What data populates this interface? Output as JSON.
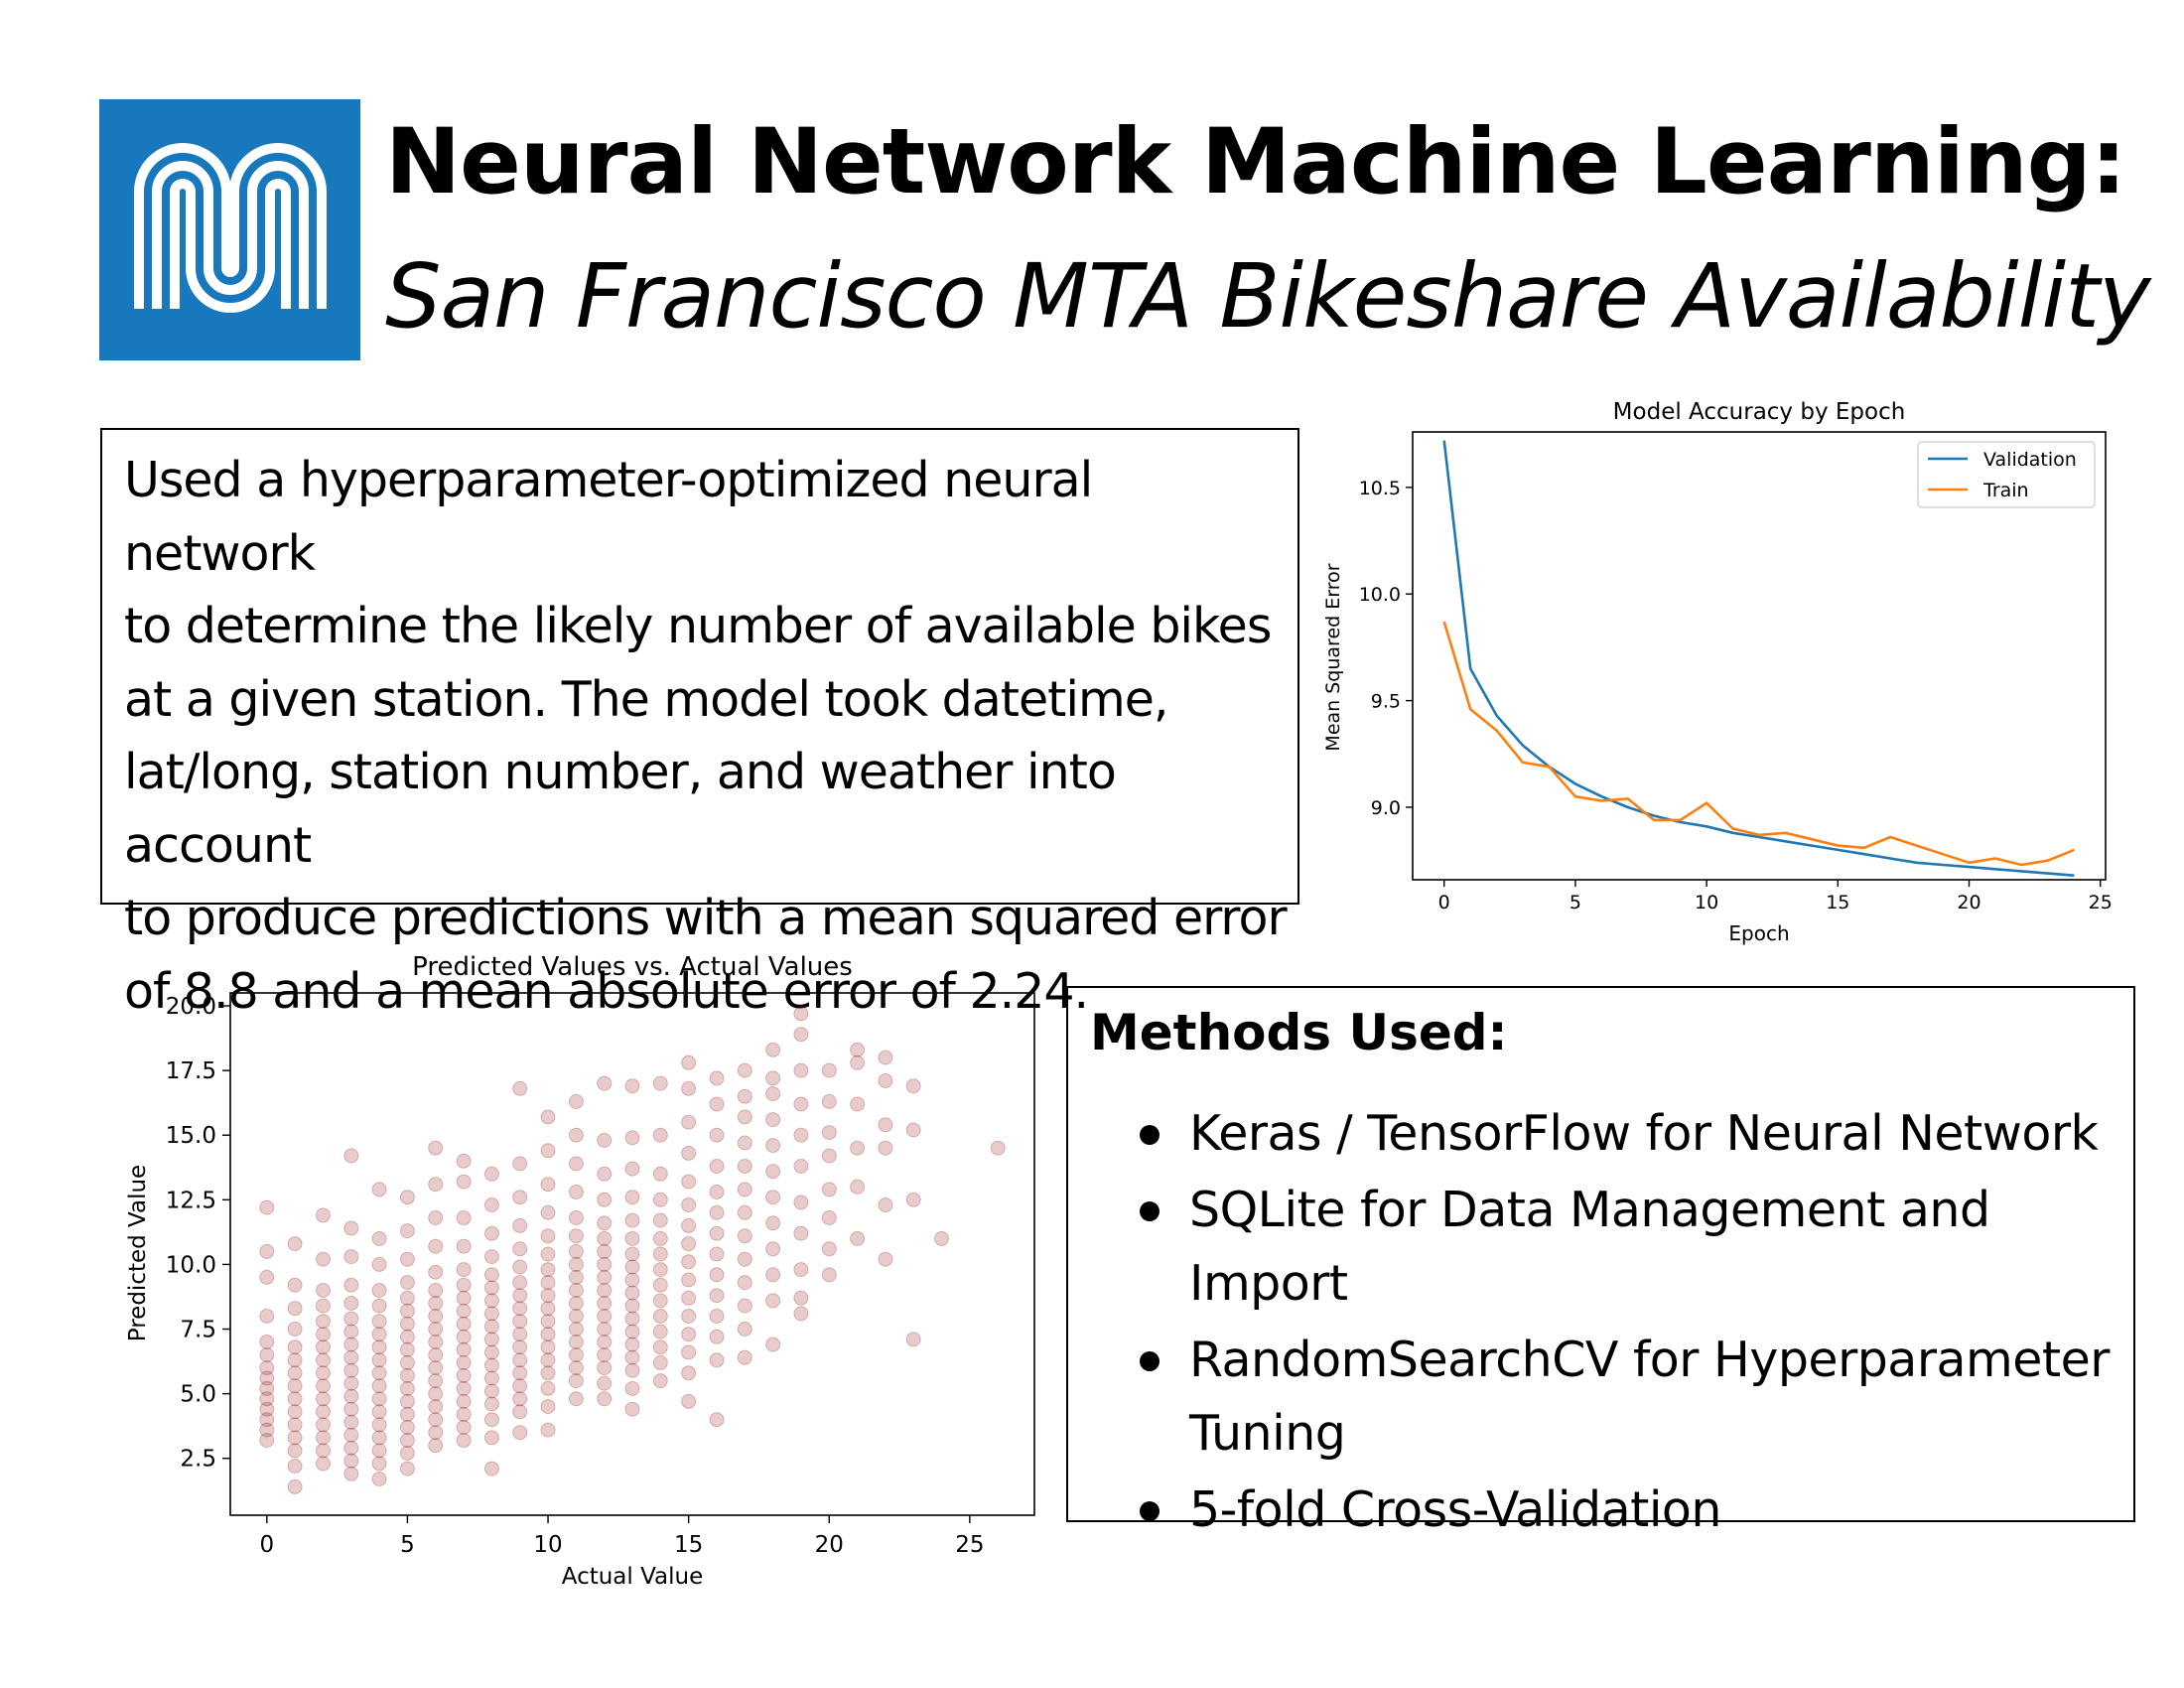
{
  "header": {
    "title": "Neural Network Machine Learning:",
    "subtitle": "San Francisco MTA Bikeshare Availability",
    "logo_color": "#1878be"
  },
  "summary": {
    "text": "Used a hyperparameter-optimized neural network\nto determine the likely number of available bikes\nat a given station. The model took datetime,\nlat/long, station number, and weather into account\nto produce predictions with a mean squared error\nof 8.8 and a mean absolute error of 2.24."
  },
  "methods": {
    "title": "Methods Used:",
    "items": [
      "Keras / TensorFlow for Neural Network",
      "SQLite for Data Management and Import",
      "RandomSearchCV for Hyperparameter\nTuning",
      "5-fold Cross-Validation"
    ]
  },
  "chart_data": [
    {
      "type": "line",
      "title": "Model Accuracy by Epoch",
      "xlabel": "Epoch",
      "ylabel": "Mean Squared Error",
      "xlim": [
        -1.2,
        25.2
      ],
      "ylim": [
        8.66,
        10.76
      ],
      "xticks": [
        0,
        5,
        10,
        15,
        20,
        25
      ],
      "xtick_labels": [
        "0",
        "5",
        "10",
        "15",
        "20",
        "25"
      ],
      "yticks": [
        9.0,
        9.5,
        10.0,
        10.5
      ],
      "ytick_labels": [
        "9.0",
        "9.5",
        "10.0",
        "10.5"
      ],
      "legend": "top-right",
      "x": [
        0,
        1,
        2,
        3,
        4,
        5,
        6,
        7,
        8,
        9,
        10,
        11,
        12,
        13,
        14,
        15,
        16,
        17,
        18,
        19,
        20,
        21,
        22,
        23,
        24
      ],
      "series": [
        {
          "name": "Validation",
          "color": "#1f77b4",
          "values": [
            10.72,
            9.65,
            9.43,
            9.29,
            9.19,
            9.11,
            9.05,
            9.0,
            8.96,
            8.93,
            8.91,
            8.88,
            8.86,
            8.84,
            8.82,
            8.8,
            8.78,
            8.76,
            8.74,
            8.73,
            8.72,
            8.71,
            8.7,
            8.69,
            8.68
          ]
        },
        {
          "name": "Train",
          "color": "#ff7f0e",
          "values": [
            9.87,
            9.46,
            9.36,
            9.21,
            9.19,
            9.05,
            9.03,
            9.04,
            8.94,
            8.94,
            9.02,
            8.9,
            8.87,
            8.88,
            8.85,
            8.82,
            8.81,
            8.86,
            8.82,
            8.78,
            8.74,
            8.76,
            8.73,
            8.75,
            8.8
          ]
        }
      ]
    },
    {
      "type": "scatter",
      "title": "Predicted Values vs. Actual Values",
      "xlabel": "Actual Value",
      "ylabel": "Predicted Value",
      "xlim": [
        -1.3,
        27.3
      ],
      "ylim": [
        0.3,
        20.5
      ],
      "xticks": [
        0,
        5,
        10,
        15,
        20,
        25
      ],
      "xtick_labels": [
        "0",
        "5",
        "10",
        "15",
        "20",
        "25"
      ],
      "yticks": [
        2.5,
        5.0,
        7.5,
        10.0,
        12.5,
        15.0,
        17.5,
        20.0
      ],
      "ytick_labels": [
        "2.5",
        "5.0",
        "7.5",
        "10.0",
        "12.5",
        "15.0",
        "17.5",
        "20.0"
      ],
      "point_color": "#8b0000",
      "points_note": "Each column lists [actual value, [predicted values]] for the scatter markers.",
      "columns": [
        [
          0,
          [
            3.2,
            3.6,
            4.0,
            4.4,
            4.8,
            5.2,
            5.6,
            6.0,
            6.5,
            7.0,
            8.0,
            9.5,
            10.5,
            12.2
          ]
        ],
        [
          1,
          [
            1.4,
            2.2,
            2.8,
            3.3,
            3.8,
            4.3,
            4.8,
            5.3,
            5.8,
            6.3,
            6.8,
            7.5,
            8.3,
            9.2,
            10.8
          ]
        ],
        [
          2,
          [
            2.3,
            2.8,
            3.3,
            3.8,
            4.3,
            4.8,
            5.3,
            5.8,
            6.3,
            6.8,
            7.3,
            7.8,
            8.4,
            9.0,
            10.2,
            11.9
          ]
        ],
        [
          3,
          [
            1.9,
            2.4,
            2.9,
            3.4,
            3.9,
            4.4,
            4.9,
            5.4,
            5.9,
            6.4,
            6.9,
            7.4,
            7.9,
            8.5,
            9.2,
            10.3,
            11.4,
            14.2
          ]
        ],
        [
          4,
          [
            1.7,
            2.3,
            2.8,
            3.3,
            3.8,
            4.3,
            4.8,
            5.3,
            5.8,
            6.3,
            6.8,
            7.3,
            7.8,
            8.4,
            9.0,
            10.0,
            11.0,
            12.9
          ]
        ],
        [
          5,
          [
            2.1,
            2.7,
            3.2,
            3.7,
            4.2,
            4.7,
            5.2,
            5.7,
            6.2,
            6.7,
            7.2,
            7.7,
            8.2,
            8.7,
            9.3,
            10.2,
            11.3,
            12.6
          ]
        ],
        [
          6,
          [
            3.0,
            3.5,
            4.0,
            4.5,
            5.0,
            5.5,
            6.0,
            6.5,
            7.0,
            7.5,
            8.0,
            8.5,
            9.0,
            9.7,
            10.7,
            11.8,
            13.1,
            14.5
          ]
        ],
        [
          7,
          [
            3.2,
            3.7,
            4.2,
            4.7,
            5.2,
            5.7,
            6.2,
            6.7,
            7.2,
            7.7,
            8.2,
            8.7,
            9.2,
            9.8,
            10.7,
            11.8,
            13.2,
            14.0
          ]
        ],
        [
          8,
          [
            2.1,
            3.3,
            4.0,
            4.6,
            5.1,
            5.6,
            6.1,
            6.6,
            7.1,
            7.6,
            8.1,
            8.6,
            9.1,
            9.6,
            10.3,
            11.2,
            12.3,
            13.5
          ]
        ],
        [
          9,
          [
            3.5,
            4.3,
            4.8,
            5.3,
            5.8,
            6.3,
            6.8,
            7.3,
            7.8,
            8.3,
            8.8,
            9.3,
            9.9,
            10.6,
            11.5,
            12.6,
            13.9,
            16.8
          ]
        ],
        [
          10,
          [
            3.6,
            4.5,
            5.2,
            5.8,
            6.3,
            6.8,
            7.3,
            7.8,
            8.3,
            8.8,
            9.3,
            9.8,
            10.4,
            11.1,
            12.0,
            13.1,
            14.4,
            15.7
          ]
        ],
        [
          11,
          [
            4.8,
            5.5,
            6.0,
            6.5,
            7.0,
            7.5,
            8.0,
            8.5,
            9.0,
            9.5,
            10.0,
            10.5,
            11.1,
            11.8,
            12.8,
            13.9,
            15.0,
            16.3
          ]
        ],
        [
          12,
          [
            4.8,
            5.4,
            6.0,
            6.5,
            7.0,
            7.5,
            8.0,
            8.5,
            9.0,
            9.5,
            10.0,
            10.5,
            11.0,
            11.6,
            12.5,
            13.5,
            14.8,
            17.0
          ]
        ],
        [
          13,
          [
            4.4,
            5.2,
            5.9,
            6.4,
            6.9,
            7.4,
            7.9,
            8.4,
            8.9,
            9.4,
            9.9,
            10.4,
            11.0,
            11.7,
            12.6,
            13.7,
            14.9,
            16.9
          ]
        ],
        [
          14,
          [
            5.5,
            6.2,
            6.8,
            7.4,
            8.0,
            8.6,
            9.2,
            9.8,
            10.4,
            11.0,
            11.7,
            12.5,
            13.5,
            15.0,
            17.0
          ]
        ],
        [
          15,
          [
            4.7,
            5.8,
            6.6,
            7.3,
            8.0,
            8.7,
            9.4,
            10.1,
            10.8,
            11.5,
            12.3,
            13.2,
            14.3,
            15.5,
            16.8,
            17.8
          ]
        ],
        [
          16,
          [
            4.0,
            6.3,
            7.2,
            8.0,
            8.8,
            9.6,
            10.4,
            11.2,
            12.0,
            12.8,
            13.8,
            15.0,
            16.2,
            17.2
          ]
        ],
        [
          17,
          [
            6.4,
            7.5,
            8.4,
            9.3,
            10.2,
            11.1,
            12.0,
            12.9,
            13.8,
            14.7,
            15.7,
            16.5,
            17.5
          ]
        ],
        [
          18,
          [
            6.9,
            8.6,
            9.6,
            10.6,
            11.6,
            12.6,
            13.6,
            14.6,
            15.6,
            16.6,
            17.2,
            18.3
          ]
        ],
        [
          19,
          [
            8.1,
            8.7,
            9.8,
            11.2,
            12.4,
            13.8,
            15.0,
            16.2,
            17.5,
            18.9,
            19.7
          ]
        ],
        [
          20,
          [
            9.6,
            10.6,
            11.8,
            12.9,
            14.2,
            15.1,
            16.3,
            17.5
          ]
        ],
        [
          21,
          [
            11.0,
            13.0,
            14.5,
            16.2,
            17.8,
            18.3
          ]
        ],
        [
          22,
          [
            10.2,
            12.3,
            14.5,
            15.4,
            17.1,
            18.0
          ]
        ],
        [
          23,
          [
            7.1,
            12.5,
            15.2,
            16.9
          ]
        ],
        [
          24,
          [
            11.0
          ]
        ],
        [
          26,
          [
            14.5
          ]
        ]
      ]
    }
  ]
}
